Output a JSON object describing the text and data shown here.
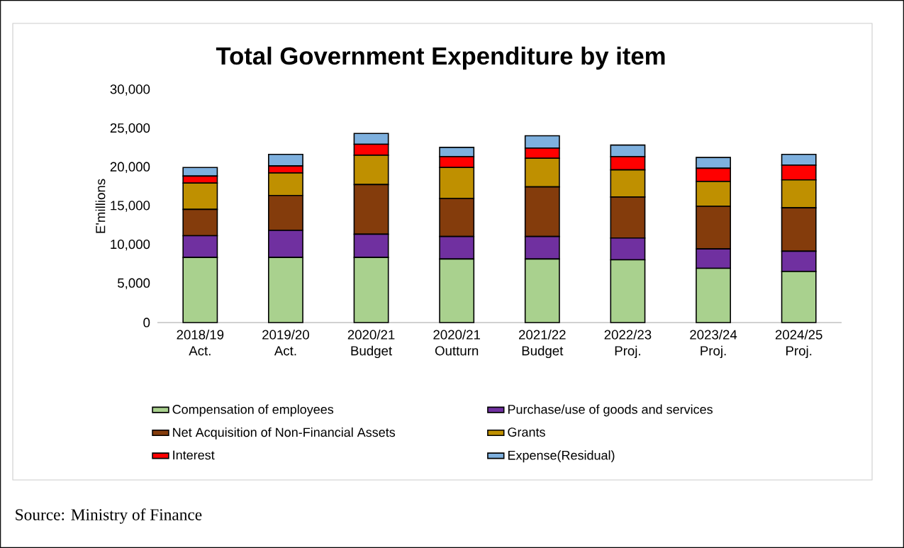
{
  "chart_data": {
    "type": "bar",
    "stacked": true,
    "title": "Total Government Expenditure by item",
    "ylabel": "E'millions",
    "categories": [
      "2018/19 Act.",
      "2019/20 Act.",
      "2020/21 Budget",
      "2020/21 Outturn",
      "2021/22 Budget",
      "2022/23 Proj.",
      "2023/24 Proj.",
      "2024/25 Proj."
    ],
    "series": [
      {
        "name": "Compensation of employees",
        "color": "#a9d18e",
        "values": [
          8400,
          8400,
          8400,
          8200,
          8200,
          8100,
          7000,
          6600
        ]
      },
      {
        "name": "Purchase/use of goods and services",
        "color": "#7030a0",
        "values": [
          2800,
          3500,
          3000,
          2900,
          2900,
          2800,
          2500,
          2600
        ]
      },
      {
        "name": "Net Acquisition of Non-Financial Assets",
        "color": "#843c0c",
        "values": [
          3400,
          4500,
          6400,
          4900,
          6400,
          5300,
          5500,
          5600
        ]
      },
      {
        "name": "Grants",
        "color": "#bf9000",
        "values": [
          3400,
          2900,
          3800,
          4000,
          3700,
          3500,
          3200,
          3600
        ]
      },
      {
        "name": "Interest",
        "color": "#ff0000",
        "values": [
          900,
          900,
          1400,
          1400,
          1300,
          1700,
          1700,
          1900
        ]
      },
      {
        "name": "Expense(Residual)",
        "color": "#7eb0de",
        "values": [
          1100,
          1500,
          1400,
          1200,
          1600,
          1500,
          1400,
          1400
        ]
      }
    ],
    "ylim": [
      0,
      30000
    ],
    "yticks": [
      {
        "value": 0,
        "label": "0"
      },
      {
        "value": 5000,
        "label": "5,000"
      },
      {
        "value": 10000,
        "label": "10,000"
      },
      {
        "value": 15000,
        "label": "15,000"
      },
      {
        "value": 20000,
        "label": "20,000"
      },
      {
        "value": 25000,
        "label": "25,000"
      },
      {
        "value": 30000,
        "label": "30,000"
      }
    ],
    "grid": false,
    "legend": "bottom",
    "annotations": [
      "Source: Ministry of Finance"
    ]
  }
}
